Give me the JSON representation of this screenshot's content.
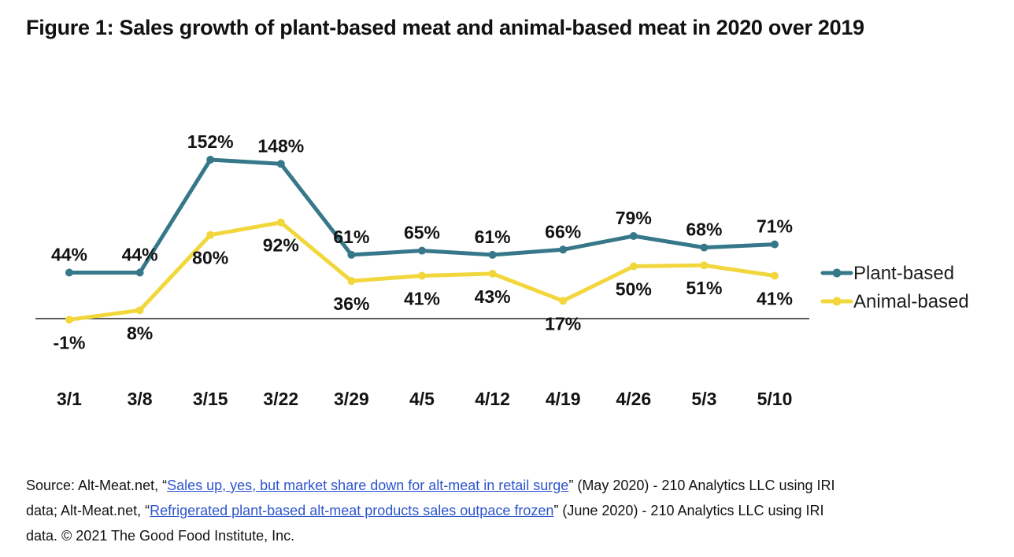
{
  "chart_data": {
    "type": "line",
    "title": "Figure 1: Sales growth of plant-based meat and animal-based meat in 2020 over 2019",
    "categories": [
      "3/1",
      "3/8",
      "3/15",
      "3/22",
      "3/29",
      "4/5",
      "4/12",
      "4/19",
      "4/26",
      "5/3",
      "5/10"
    ],
    "series": [
      {
        "name": "Plant-based",
        "color": "#36788a",
        "values": [
          44,
          44,
          152,
          148,
          61,
          65,
          61,
          66,
          79,
          68,
          71
        ],
        "label_position": "above"
      },
      {
        "name": "Animal-based",
        "color": "#f2d73c",
        "values": [
          -1,
          8,
          80,
          92,
          36,
          41,
          43,
          17,
          50,
          51,
          41
        ],
        "label_position": "below"
      }
    ],
    "value_suffix": "%",
    "xlabel": "",
    "ylabel": "",
    "baseline_value": 0,
    "grid": false,
    "legend_position": "right",
    "axis_color": "#262626",
    "label_color": "#131313"
  },
  "source": {
    "link_color": "#2d55cd",
    "lines": [
      {
        "segments": [
          {
            "type": "text",
            "text": "Source: Alt-Meat.net, “"
          },
          {
            "type": "link",
            "text": "Sales up, yes, but market share down for alt-meat in retail surge"
          },
          {
            "type": "text",
            "text": "” (May 2020) - 210 Analytics LLC using IRI"
          }
        ]
      },
      {
        "segments": [
          {
            "type": "text",
            "text": "data; Alt-Meat.net, “"
          },
          {
            "type": "link",
            "text": "Refrigerated plant-based alt-meat products sales outpace frozen"
          },
          {
            "type": "text",
            "text": "” (June 2020) - 210 Analytics LLC using IRI"
          }
        ]
      },
      {
        "segments": [
          {
            "type": "text",
            "text": "data. © 2021 The Good Food Institute, Inc."
          }
        ]
      }
    ]
  }
}
